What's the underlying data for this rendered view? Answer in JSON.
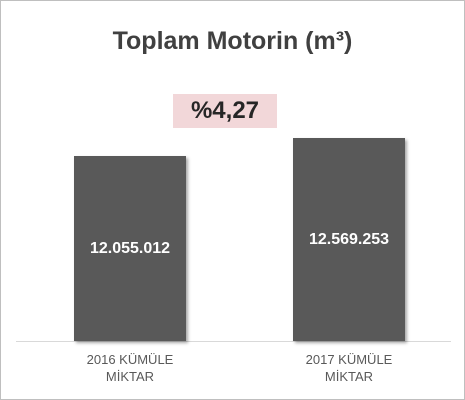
{
  "chart_data": {
    "type": "bar",
    "title": "Toplam Motorin (m³)",
    "annotation": "%4,27",
    "categories": [
      "2016 KÜMÜLE MİKTAR",
      "2017 KÜMÜLE MİKTAR"
    ],
    "values": [
      12055012,
      12569253
    ],
    "value_labels": [
      "12.055.012",
      "12.569.253"
    ],
    "color": "#595959",
    "ylim": [
      6770000,
      13000000
    ]
  }
}
